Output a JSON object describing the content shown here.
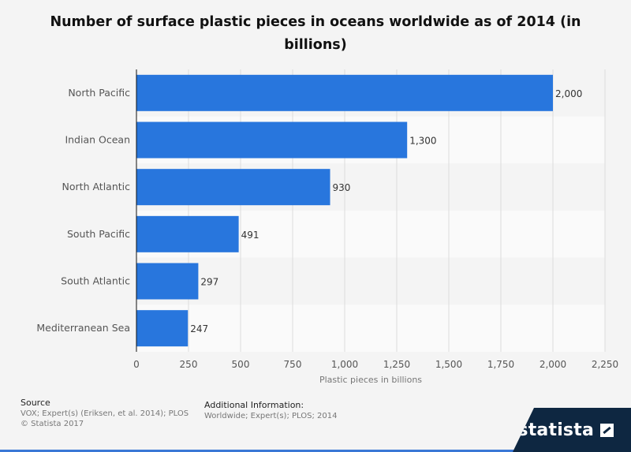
{
  "chart_data": {
    "type": "bar",
    "orientation": "horizontal",
    "title": "Number of surface plastic pieces in oceans worldwide as of 2014 (in billions)",
    "xlabel": "Plastic pieces in billions",
    "ylabel": "",
    "categories": [
      "North Pacific",
      "Indian Ocean",
      "North Atlantic",
      "South Pacific",
      "South Atlantic",
      "Mediterranean Sea"
    ],
    "values": [
      2000,
      1300,
      930,
      491,
      297,
      247
    ],
    "value_labels": [
      "2,000",
      "1,300",
      "930",
      "491",
      "297",
      "247"
    ],
    "xlim": [
      0,
      2250
    ],
    "xticks": [
      0,
      250,
      500,
      750,
      1000,
      1250,
      1500,
      1750,
      2000,
      2250
    ],
    "xtick_labels": [
      "0",
      "250",
      "500",
      "750",
      "1,000",
      "1,250",
      "1,500",
      "1,750",
      "2,000",
      "2,250"
    ],
    "grid": true,
    "bar_color": "#2876dd"
  },
  "footer": {
    "source_label": "Source",
    "source_text": "VOX; Expert(s) (Eriksen, et al. 2014); PLOS",
    "copyright": "© Statista 2017",
    "additional_label": "Additional Information:",
    "additional_text": "Worldwide; Expert(s); PLOS; 2014"
  },
  "brand": {
    "name": "statista",
    "icon": "statista-logo-icon"
  }
}
